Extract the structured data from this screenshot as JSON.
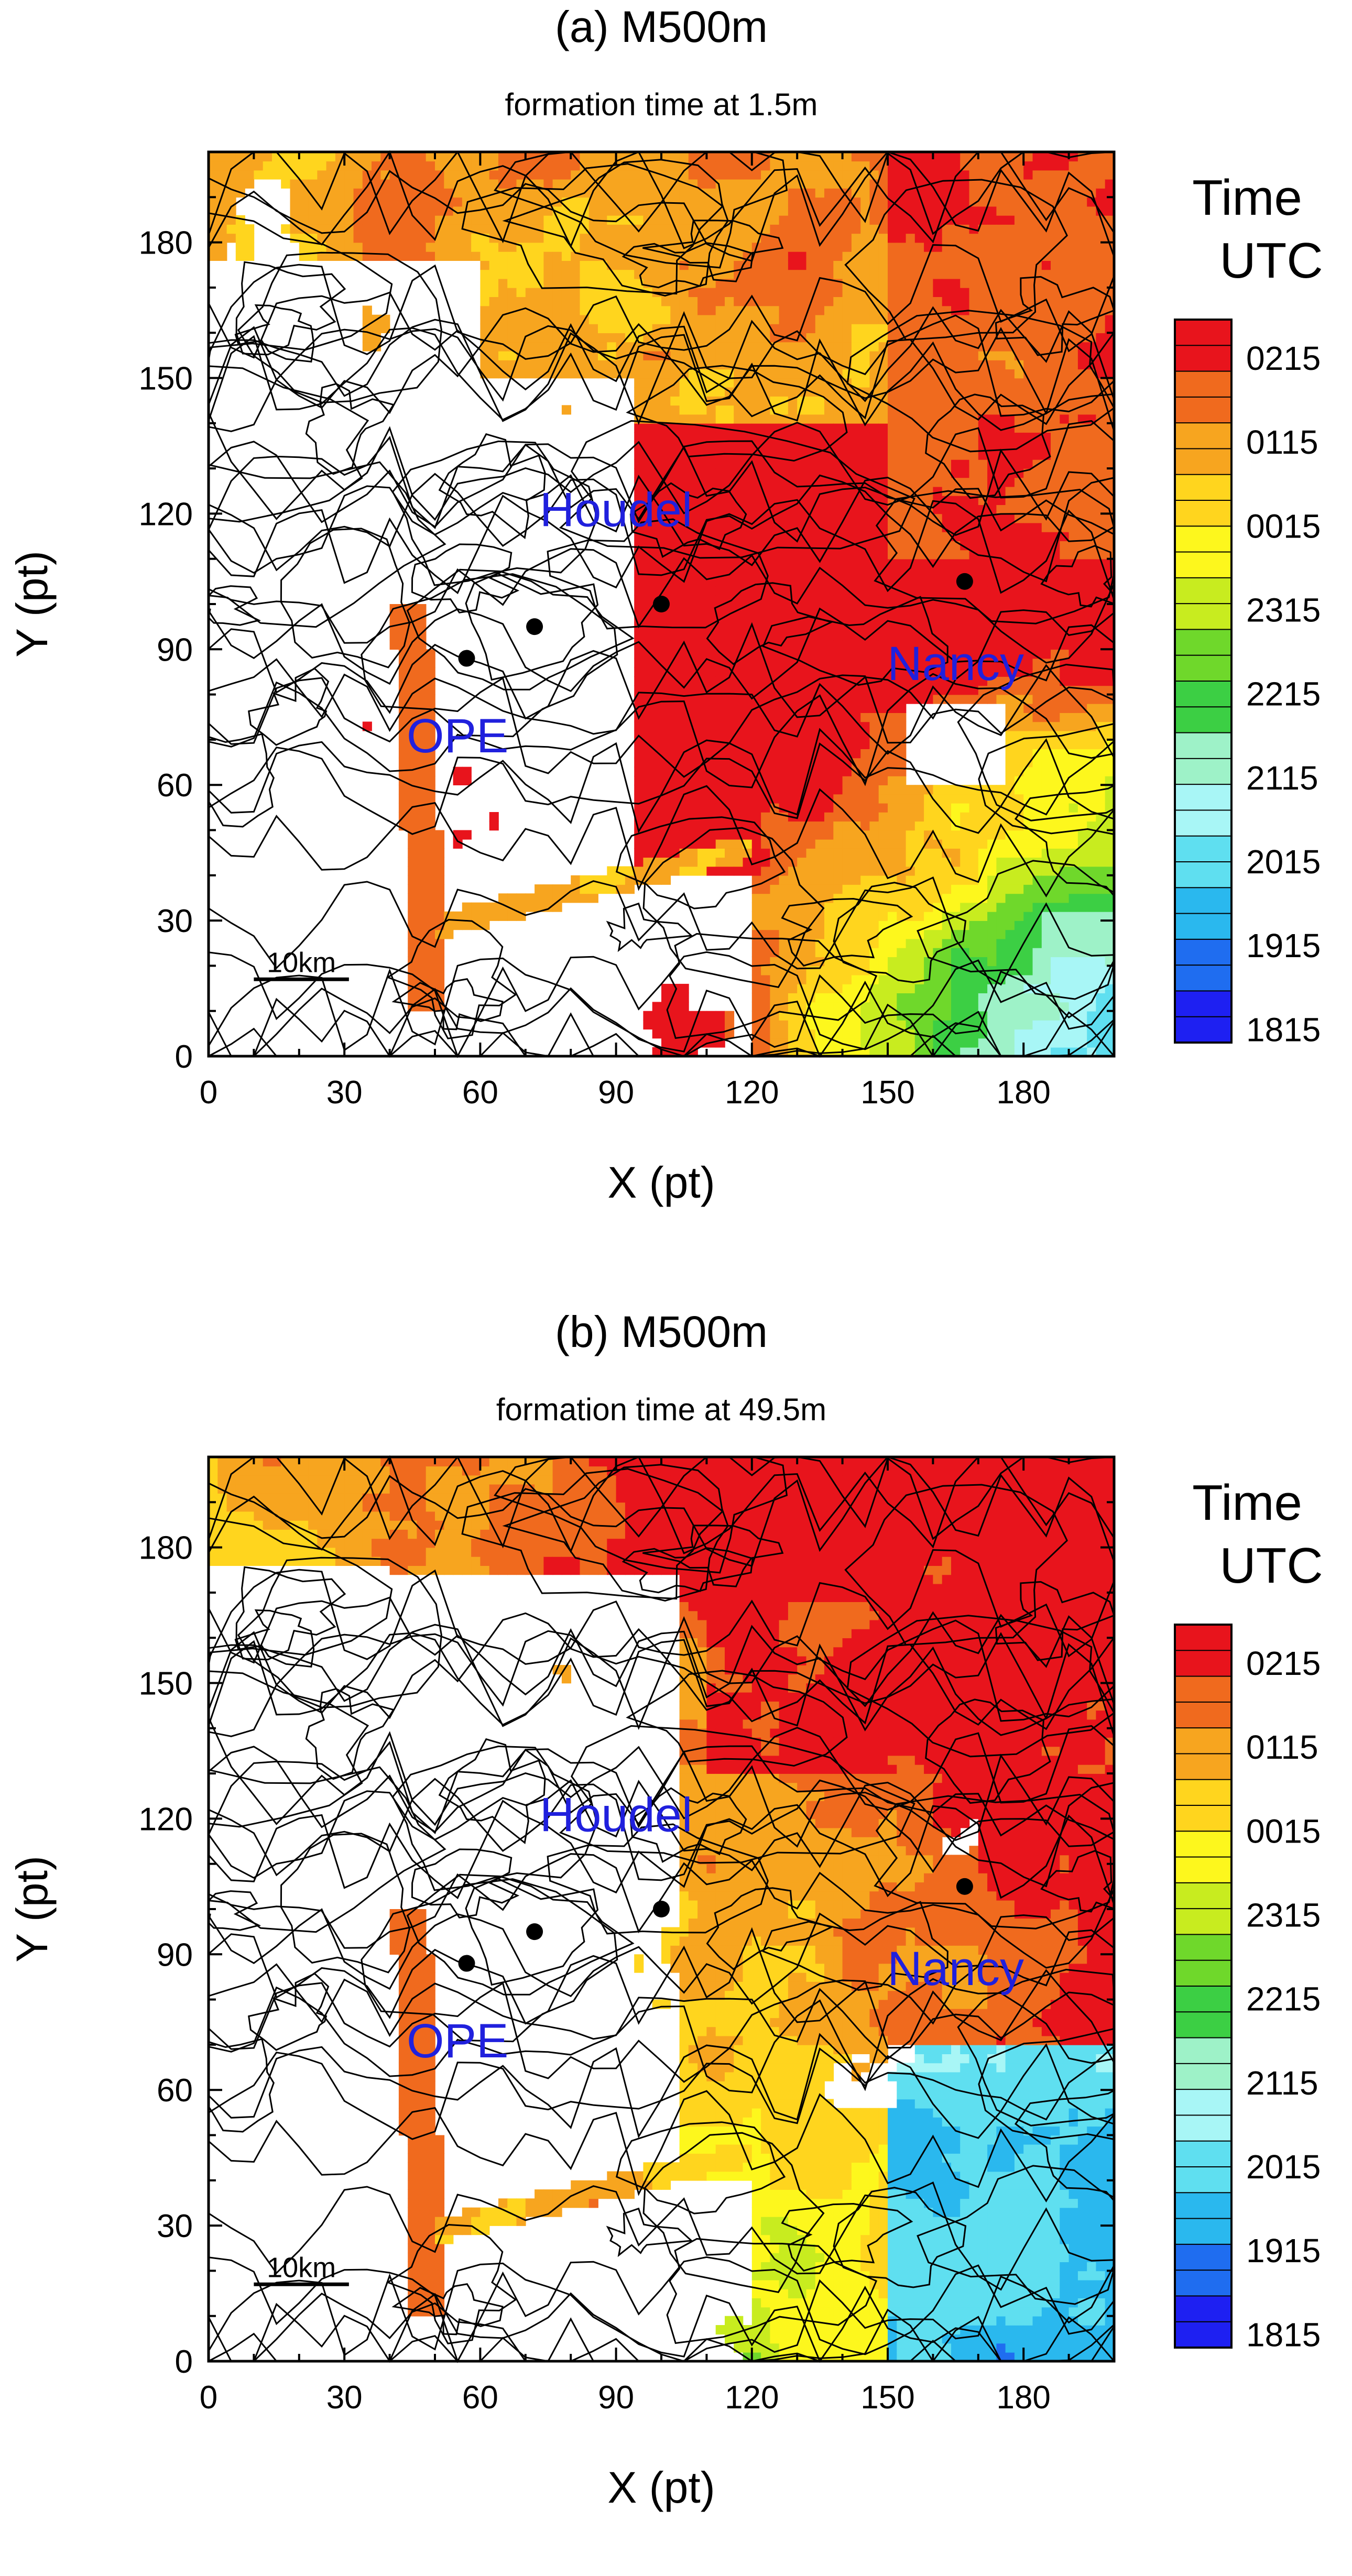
{
  "figure": {
    "panels": [
      {
        "id": "a",
        "title": "(a) M500m",
        "subtitle": "formation time at 1.5m"
      },
      {
        "id": "b",
        "title": "(b) M500m",
        "subtitle": "formation time at 49.5m"
      }
    ]
  },
  "chart_data": [
    {
      "type": "heatmap",
      "title": "(a) M500m",
      "subtitle": "formation time at 1.5m",
      "xlabel": "X (pt)",
      "ylabel": "Y (pt)",
      "xlim": [
        0,
        200
      ],
      "ylim": [
        0,
        200
      ],
      "xticks": [
        0,
        30,
        60,
        90,
        120,
        150,
        180
      ],
      "yticks": [
        0,
        30,
        60,
        90,
        120,
        150,
        180
      ],
      "colorbar": {
        "title_line1": "Time",
        "title_line2": "UTC",
        "labels": [
          "0215",
          "0115",
          "0015",
          "2315",
          "2215",
          "2115",
          "2015",
          "1915",
          "1815"
        ]
      },
      "scale_bar": "10km",
      "sites": [
        {
          "name": "Houdel",
          "x": 100,
          "y": 100,
          "label_x": 90,
          "label_y": 120
        },
        {
          "name": "Nancy",
          "x": 167,
          "y": 105,
          "label_x": 165,
          "label_y": 86
        },
        {
          "name": "OPE",
          "x": 57,
          "y": 88,
          "label_x": 55,
          "label_y": 70
        },
        {
          "name": "",
          "x": 72,
          "y": 95
        }
      ]
    },
    {
      "type": "heatmap",
      "title": "(b) M500m",
      "subtitle": "formation time at 49.5m",
      "xlabel": "X (pt)",
      "ylabel": "Y (pt)",
      "xlim": [
        0,
        200
      ],
      "ylim": [
        0,
        200
      ],
      "xticks": [
        0,
        30,
        60,
        90,
        120,
        150,
        180
      ],
      "yticks": [
        0,
        30,
        60,
        90,
        120,
        150,
        180
      ],
      "colorbar": {
        "title_line1": "Time",
        "title_line2": "UTC",
        "labels": [
          "0215",
          "0115",
          "0015",
          "2315",
          "2215",
          "2115",
          "2015",
          "1915",
          "1815"
        ]
      },
      "scale_bar": "10km",
      "sites": [
        {
          "name": "Houdel",
          "x": 100,
          "y": 100,
          "label_x": 90,
          "label_y": 120
        },
        {
          "name": "Nancy",
          "x": 167,
          "y": 105,
          "label_x": 165,
          "label_y": 86
        },
        {
          "name": "OPE",
          "x": 57,
          "y": 88,
          "label_x": 55,
          "label_y": 70
        },
        {
          "name": "",
          "x": 72,
          "y": 95
        }
      ]
    }
  ],
  "colors": {
    "colorbar_stops": [
      "#e8141c",
      "#f06a1e",
      "#f7a51f",
      "#ffd51e",
      "#fdf71d",
      "#c8ec1f",
      "#6fd82b",
      "#3ccf44",
      "#9ef2c8",
      "#a8f6f6",
      "#5fdff0",
      "#2ab8ee",
      "#1f6df0",
      "#1e20f2"
    ],
    "site_label": "#2020dd"
  }
}
